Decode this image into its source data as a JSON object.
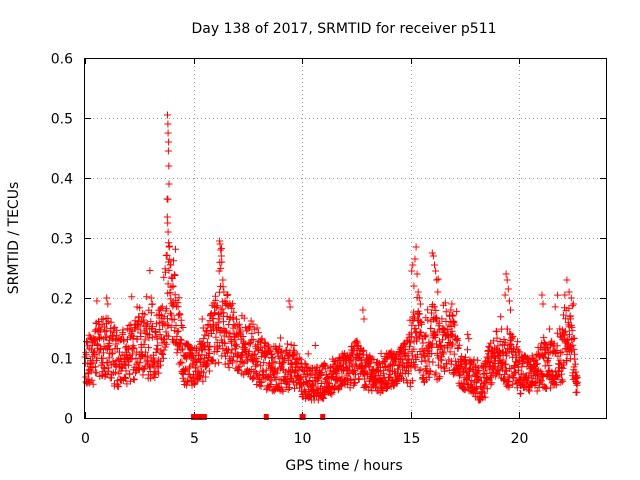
{
  "chart_data": {
    "type": "scatter",
    "title": "Day 138 of 2017, SRMTID for receiver p511",
    "xlabel": "GPS time / hours",
    "ylabel": "SRMTID / TECUs",
    "xlim": [
      0,
      24
    ],
    "ylim": [
      0,
      0.6
    ],
    "xticks": [
      0,
      5,
      10,
      15,
      20
    ],
    "yticks": [
      0,
      0.1,
      0.2,
      0.3,
      0.4,
      0.5,
      0.6
    ],
    "xtick_labels": [
      "0",
      "5",
      "10",
      "15",
      "20"
    ],
    "ytick_labels": [
      "0",
      "0.1",
      "0.2",
      "0.3",
      "0.4",
      "0.5",
      "0.6"
    ],
    "grid": true,
    "marker": "+",
    "color": "#ff0000",
    "series": [
      {
        "name": "SRMTID",
        "profile": [
          [
            0.0,
            0.085,
            0.04
          ],
          [
            0.5,
            0.11,
            0.05
          ],
          [
            1.0,
            0.12,
            0.05
          ],
          [
            1.5,
            0.095,
            0.05
          ],
          [
            2.0,
            0.105,
            0.05
          ],
          [
            2.5,
            0.12,
            0.05
          ],
          [
            3.0,
            0.125,
            0.06
          ],
          [
            3.5,
            0.13,
            0.06
          ],
          [
            3.75,
            0.2,
            0.08
          ],
          [
            3.9,
            0.22,
            0.08
          ],
          [
            4.2,
            0.17,
            0.06
          ],
          [
            4.6,
            0.09,
            0.04
          ],
          [
            5.0,
            0.085,
            0.03
          ],
          [
            5.5,
            0.1,
            0.04
          ],
          [
            6.0,
            0.15,
            0.06
          ],
          [
            6.3,
            0.16,
            0.07
          ],
          [
            7.0,
            0.125,
            0.05
          ],
          [
            7.5,
            0.12,
            0.05
          ],
          [
            8.0,
            0.1,
            0.05
          ],
          [
            8.5,
            0.085,
            0.04
          ],
          [
            9.0,
            0.08,
            0.04
          ],
          [
            9.5,
            0.09,
            0.04
          ],
          [
            10.0,
            0.065,
            0.03
          ],
          [
            10.5,
            0.055,
            0.03
          ],
          [
            11.0,
            0.06,
            0.03
          ],
          [
            11.5,
            0.07,
            0.03
          ],
          [
            12.0,
            0.08,
            0.03
          ],
          [
            12.5,
            0.09,
            0.04
          ],
          [
            13.0,
            0.075,
            0.03
          ],
          [
            13.5,
            0.07,
            0.03
          ],
          [
            14.0,
            0.08,
            0.03
          ],
          [
            14.5,
            0.085,
            0.03
          ],
          [
            15.0,
            0.1,
            0.05
          ],
          [
            15.3,
            0.15,
            0.06
          ],
          [
            15.6,
            0.09,
            0.04
          ],
          [
            16.0,
            0.14,
            0.07
          ],
          [
            16.3,
            0.11,
            0.05
          ],
          [
            16.6,
            0.13,
            0.05
          ],
          [
            17.0,
            0.12,
            0.05
          ],
          [
            17.3,
            0.08,
            0.03
          ],
          [
            17.8,
            0.07,
            0.03
          ],
          [
            18.2,
            0.05,
            0.03
          ],
          [
            18.6,
            0.08,
            0.04
          ],
          [
            19.0,
            0.11,
            0.04
          ],
          [
            19.5,
            0.1,
            0.05
          ],
          [
            20.0,
            0.08,
            0.04
          ],
          [
            20.5,
            0.07,
            0.03
          ],
          [
            21.0,
            0.085,
            0.04
          ],
          [
            21.5,
            0.09,
            0.04
          ],
          [
            22.0,
            0.11,
            0.05
          ],
          [
            22.3,
            0.15,
            0.05
          ],
          [
            22.6,
            0.07,
            0.03
          ],
          [
            22.7,
            0.06,
            0.03
          ]
        ],
        "peaks": [
          [
            3.8,
            0.505
          ],
          [
            3.82,
            0.49
          ],
          [
            3.83,
            0.475
          ],
          [
            3.85,
            0.46
          ],
          [
            3.84,
            0.445
          ],
          [
            3.86,
            0.42
          ],
          [
            3.87,
            0.39
          ],
          [
            3.78,
            0.365
          ],
          [
            3.79,
            0.335
          ],
          [
            3.81,
            0.325
          ],
          [
            3.83,
            0.31
          ],
          [
            3.85,
            0.26
          ],
          [
            3.95,
            0.255
          ],
          [
            4.0,
            0.235
          ],
          [
            4.05,
            0.22
          ],
          [
            6.2,
            0.295
          ],
          [
            6.22,
            0.29
          ],
          [
            6.25,
            0.28
          ],
          [
            6.28,
            0.27
          ],
          [
            6.3,
            0.26
          ],
          [
            6.18,
            0.245
          ],
          [
            6.35,
            0.23
          ],
          [
            6.4,
            0.21
          ],
          [
            6.45,
            0.195
          ],
          [
            15.05,
            0.245
          ],
          [
            15.1,
            0.255
          ],
          [
            15.2,
            0.265
          ],
          [
            15.25,
            0.285
          ],
          [
            15.3,
            0.24
          ],
          [
            15.15,
            0.22
          ],
          [
            15.35,
            0.21
          ],
          [
            15.4,
            0.2
          ],
          [
            15.45,
            0.19
          ],
          [
            16.0,
            0.275
          ],
          [
            16.05,
            0.27
          ],
          [
            16.1,
            0.255
          ],
          [
            16.15,
            0.245
          ],
          [
            16.2,
            0.23
          ],
          [
            16.25,
            0.21
          ],
          [
            16.85,
            0.18
          ],
          [
            16.9,
            0.19
          ],
          [
            16.95,
            0.17
          ],
          [
            19.4,
            0.24
          ],
          [
            19.45,
            0.23
          ],
          [
            19.5,
            0.215
          ],
          [
            19.35,
            0.205
          ],
          [
            19.55,
            0.195
          ],
          [
            19.6,
            0.18
          ],
          [
            22.1,
            0.205
          ],
          [
            22.2,
            0.23
          ],
          [
            22.3,
            0.21
          ],
          [
            22.4,
            0.2
          ],
          [
            22.5,
            0.19
          ],
          [
            9.4,
            0.195
          ],
          [
            9.45,
            0.185
          ],
          [
            12.8,
            0.18
          ],
          [
            12.85,
            0.165
          ],
          [
            1.0,
            0.2
          ],
          [
            1.05,
            0.19
          ],
          [
            0.55,
            0.195
          ],
          [
            3.05,
            0.2
          ],
          [
            3.1,
            0.19
          ],
          [
            21.05,
            0.205
          ],
          [
            21.1,
            0.19
          ],
          [
            5.4,
            0.165
          ],
          [
            5.45,
            0.15
          ],
          [
            2.4,
            0.185
          ]
        ],
        "gap_markers_x": [
          5.0,
          5.15,
          5.35,
          5.5,
          8.35,
          10.0,
          10.05,
          10.95
        ]
      }
    ]
  }
}
